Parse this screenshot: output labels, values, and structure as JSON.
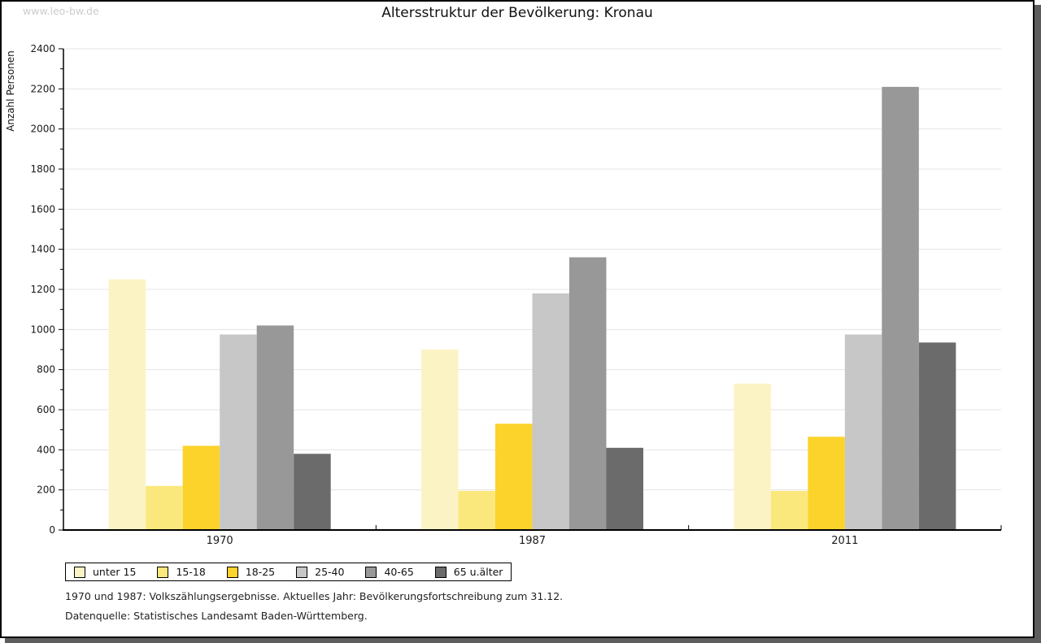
{
  "watermark": "www.leo-bw.de",
  "chart_data": {
    "type": "bar",
    "title": "Altersstruktur der Bevölkerung: Kronau",
    "xlabel": "",
    "ylabel": "Anzahl Personen",
    "ylim": [
      0,
      2400
    ],
    "ytick_step": 200,
    "minor_tick_step": 100,
    "grid": true,
    "legend_position": "bottom",
    "categories": [
      "1970",
      "1987",
      "2011"
    ],
    "series": [
      {
        "name": "unter 15",
        "color": "#FCF3C5",
        "values": [
          1250,
          900,
          730
        ]
      },
      {
        "name": "15-18",
        "color": "#FBE87D",
        "values": [
          220,
          195,
          195
        ]
      },
      {
        "name": "18-25",
        "color": "#FCD32B",
        "values": [
          420,
          530,
          465
        ]
      },
      {
        "name": "25-40",
        "color": "#C7C7C7",
        "values": [
          975,
          1180,
          975
        ]
      },
      {
        "name": "40-65",
        "color": "#989898",
        "values": [
          1020,
          1360,
          2210
        ]
      },
      {
        "name": "65 u.älter",
        "color": "#6B6B6B",
        "values": [
          380,
          410,
          935
        ]
      }
    ]
  },
  "footer": {
    "line1": "1970 und 1987: Volkszählungsergebnisse. Aktuelles Jahr: Bevölkerungsfortschreibung zum 31.12.",
    "line2": "Datenquelle: Statistisches Landesamt Baden-Württemberg."
  }
}
